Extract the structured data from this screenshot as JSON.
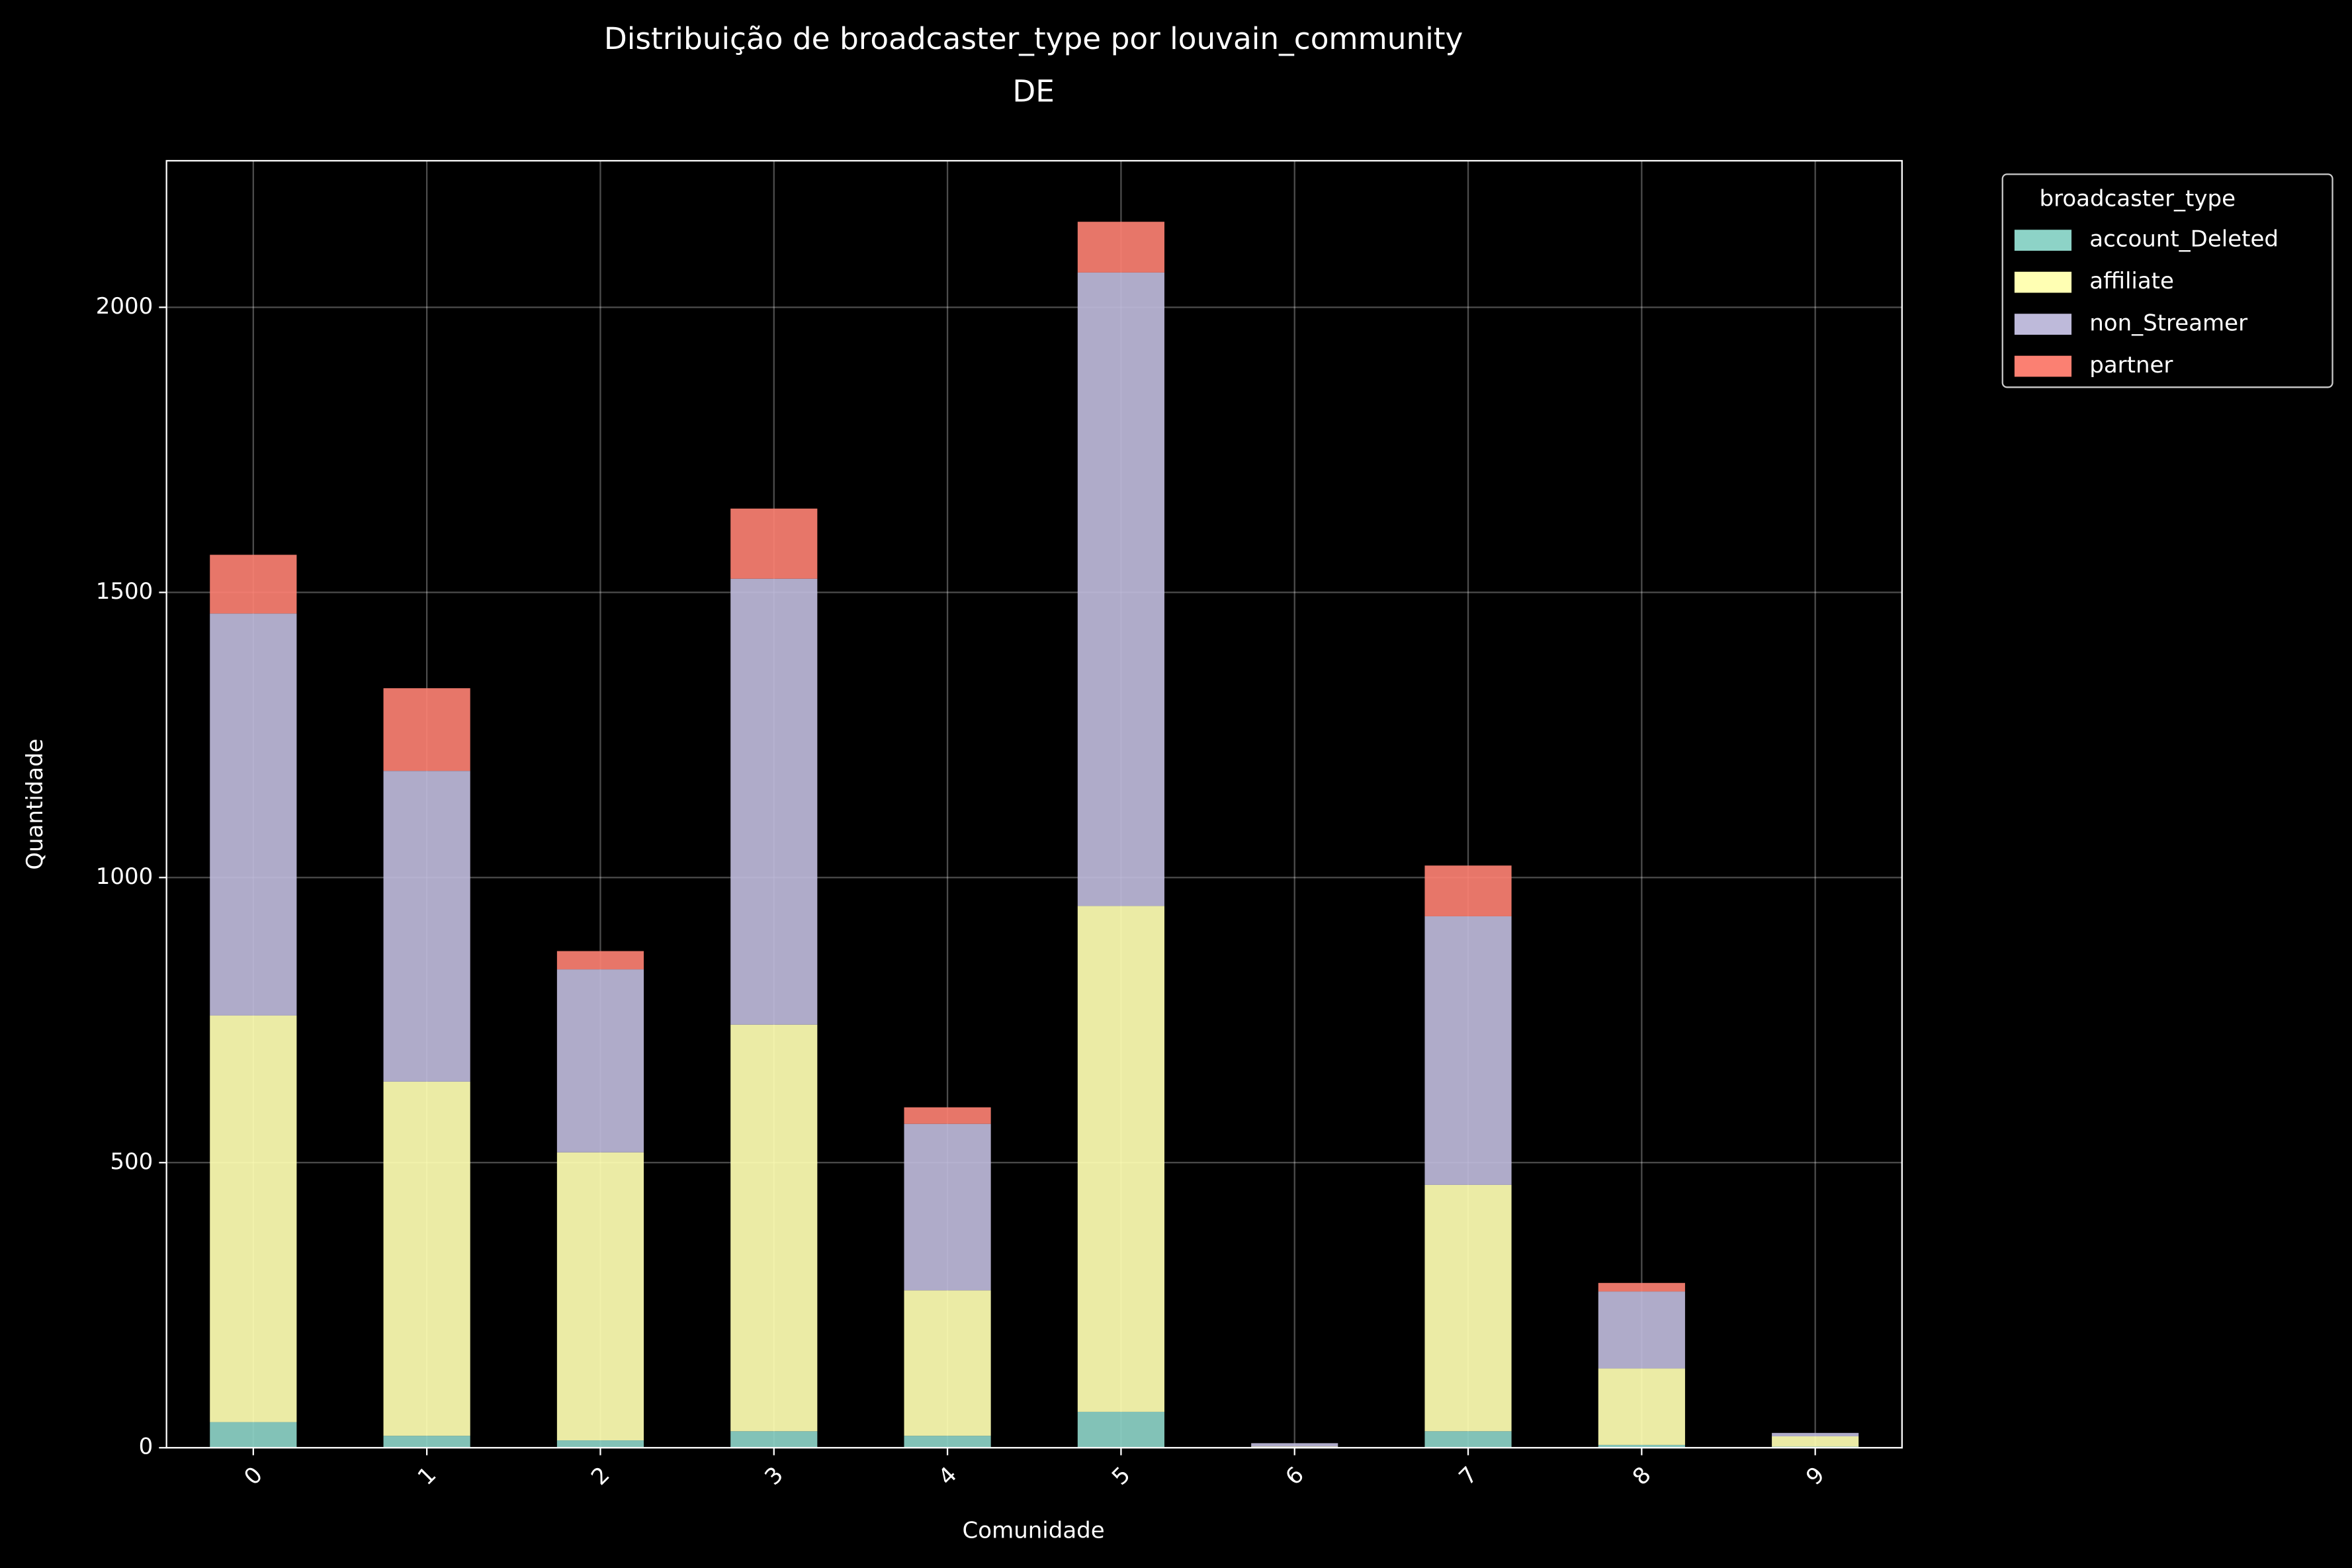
{
  "chart_data": {
    "type": "stacked_bar",
    "title": "Distribuição de broadcaster_type por louvain_community",
    "subtitle": "DE",
    "x_label": "Comunidade",
    "y_label": "Quantidade",
    "legend_title": "broadcaster_type",
    "legend_position": "outside-upper-right",
    "grid": true,
    "categories": [
      "0",
      "1",
      "2",
      "3",
      "4",
      "5",
      "6",
      "7",
      "8",
      "9"
    ],
    "series": [
      {
        "name": "account_Deleted",
        "color": "#8dd3c7",
        "values": [
          45,
          21,
          13,
          29,
          21,
          63,
          1,
          29,
          5,
          2
        ]
      },
      {
        "name": "affiliate",
        "color": "#ffffb3",
        "values": [
          713,
          621,
          505,
          713,
          255,
          887,
          1,
          432,
          134,
          18
        ]
      },
      {
        "name": "non_Streamer",
        "color": "#bebada",
        "values": [
          705,
          545,
          321,
          782,
          292,
          1111,
          6,
          471,
          135,
          6
        ]
      },
      {
        "name": "partner",
        "color": "#fb8072",
        "values": [
          103,
          145,
          32,
          123,
          29,
          89,
          0,
          89,
          15,
          0
        ]
      }
    ],
    "ylim": [
      0,
      2257
    ],
    "yticks": [
      0,
      500,
      1000,
      1500,
      2000
    ]
  }
}
